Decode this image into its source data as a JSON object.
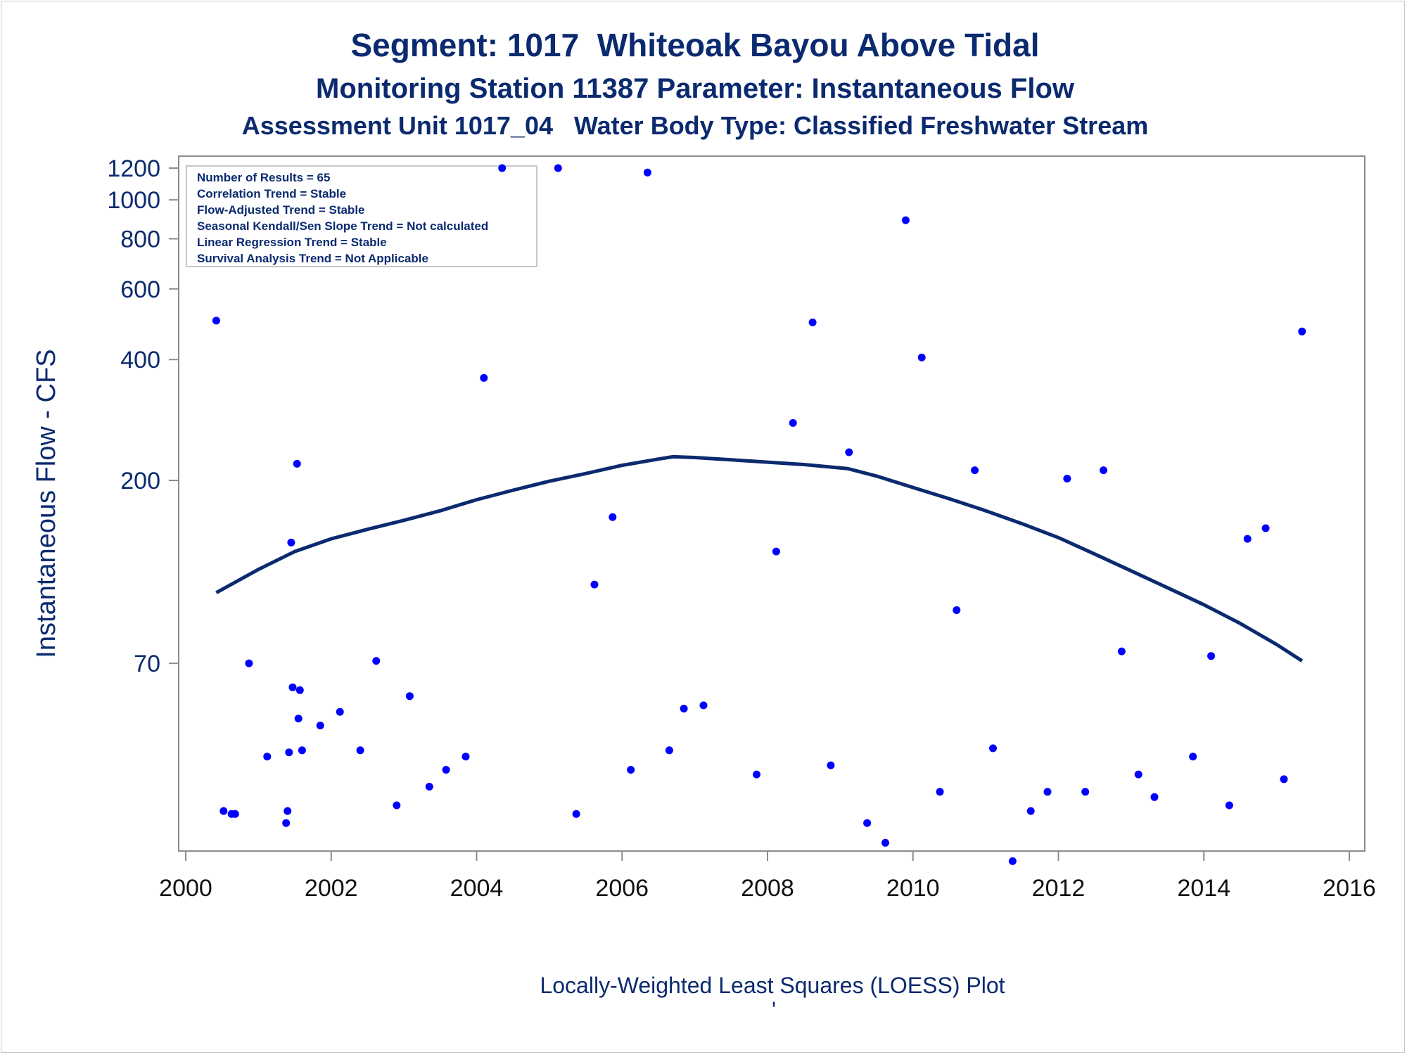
{
  "colors": {
    "title": "#0b2a6f",
    "points": "#0000ff",
    "loess_line": "#0b2a6f",
    "axis": "#8c8c8c"
  },
  "stats_box": [
    "Number of Results = 65",
    "Correlation Trend = Stable",
    "Flow-Adjusted Trend = Stable",
    "Seasonal Kendall/Sen Slope Trend = Not calculated",
    "Linear Regression Trend = Stable",
    "Survival Analysis Trend = Not Applicable"
  ],
  "chart_data": {
    "type": "scatter",
    "title": "Segment: 1017  Whiteoak Bayou Above Tidal",
    "subtitle": "Monitoring Station 11387 Parameter: Instantaneous Flow",
    "subtitle2": "Assessment Unit 1017_04   Water Body Type: Classified Freshwater Stream",
    "xlabel": "",
    "ylabel": "Instantaneous Flow - CFS",
    "footnote": "Locally-Weighted Least Squares (LOESS) Plot",
    "footnote_mark": "'",
    "x_ticks": [
      "2000",
      "2002",
      "2004",
      "2006",
      "2008",
      "2010",
      "2012",
      "2014",
      "2016"
    ],
    "y_ticks": [
      "1200",
      "1000",
      "800",
      "600",
      "400",
      "200",
      "70"
    ],
    "y_scale": "log",
    "xlim": [
      2000,
      2016
    ],
    "ylim": [
      18,
      1300
    ],
    "grid": false,
    "series": [
      {
        "values": [
          [
            2000.42,
            500
          ],
          [
            2000.52,
            30
          ],
          [
            2000.63,
            29.5
          ],
          [
            2000.68,
            29.5
          ],
          [
            2000.87,
            70
          ],
          [
            2001.12,
            41
          ],
          [
            2001.38,
            28
          ],
          [
            2001.4,
            30
          ],
          [
            2001.42,
            42
          ],
          [
            2001.45,
            140
          ],
          [
            2001.47,
            61
          ],
          [
            2001.53,
            220
          ],
          [
            2001.55,
            51
          ],
          [
            2001.57,
            60
          ],
          [
            2001.6,
            42.5
          ],
          [
            2001.85,
            49
          ],
          [
            2002.12,
            53
          ],
          [
            2002.4,
            42.5
          ],
          [
            2002.62,
            71
          ],
          [
            2002.9,
            31
          ],
          [
            2003.08,
            58
          ],
          [
            2003.35,
            34.5
          ],
          [
            2003.58,
            38
          ],
          [
            2003.85,
            41
          ],
          [
            2004.1,
            360
          ],
          [
            2004.35,
            1200
          ],
          [
            2005.12,
            1200
          ],
          [
            2005.37,
            29.5
          ],
          [
            2005.62,
            110
          ],
          [
            2005.87,
            162
          ],
          [
            2006.12,
            38
          ],
          [
            2006.35,
            1170
          ],
          [
            2006.65,
            42.5
          ],
          [
            2006.85,
            54
          ],
          [
            2007.12,
            55
          ],
          [
            2007.85,
            37
          ],
          [
            2008.12,
            133
          ],
          [
            2008.35,
            278
          ],
          [
            2008.62,
            495
          ],
          [
            2008.87,
            39
          ],
          [
            2009.12,
            235
          ],
          [
            2009.37,
            28
          ],
          [
            2009.62,
            25
          ],
          [
            2009.9,
            890
          ],
          [
            2010.12,
            405
          ],
          [
            2010.37,
            33.5
          ],
          [
            2010.6,
            95
          ],
          [
            2010.85,
            212
          ],
          [
            2011.1,
            43
          ],
          [
            2011.37,
            22.5
          ],
          [
            2011.62,
            30
          ],
          [
            2011.85,
            33.5
          ],
          [
            2012.12,
            202
          ],
          [
            2012.37,
            33.5
          ],
          [
            2012.62,
            212
          ],
          [
            2012.87,
            75
          ],
          [
            2013.1,
            37
          ],
          [
            2013.32,
            32.5
          ],
          [
            2013.85,
            41
          ],
          [
            2014.1,
            73
          ],
          [
            2014.35,
            31
          ],
          [
            2014.6,
            143
          ],
          [
            2014.85,
            152
          ],
          [
            2015.1,
            36
          ],
          [
            2015.35,
            470
          ]
        ]
      },
      {
        "type": "loess_line",
        "values": [
          [
            2000.42,
            105
          ],
          [
            2001.0,
            120
          ],
          [
            2001.5,
            133
          ],
          [
            2002.0,
            143
          ],
          [
            2002.5,
            151
          ],
          [
            2003.0,
            159
          ],
          [
            2003.5,
            168
          ],
          [
            2004.0,
            179
          ],
          [
            2004.5,
            189
          ],
          [
            2005.0,
            199
          ],
          [
            2005.5,
            208
          ],
          [
            2006.0,
            218
          ],
          [
            2006.5,
            226
          ],
          [
            2006.7,
            229
          ],
          [
            2007.0,
            228
          ],
          [
            2007.5,
            225
          ],
          [
            2008.0,
            222
          ],
          [
            2008.5,
            219
          ],
          [
            2009.1,
            214
          ],
          [
            2009.5,
            205
          ],
          [
            2010.0,
            192
          ],
          [
            2010.5,
            180
          ],
          [
            2011.0,
            168
          ],
          [
            2011.5,
            156
          ],
          [
            2012.0,
            144
          ],
          [
            2012.5,
            131
          ],
          [
            2013.0,
            119
          ],
          [
            2013.5,
            108
          ],
          [
            2014.0,
            98
          ],
          [
            2014.5,
            88
          ],
          [
            2015.0,
            78
          ],
          [
            2015.35,
            71
          ]
        ]
      }
    ],
    "legend_position": "top-left"
  }
}
